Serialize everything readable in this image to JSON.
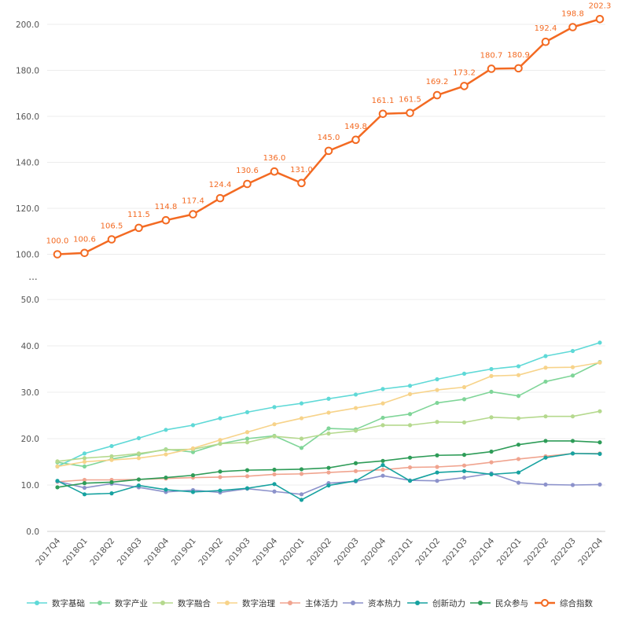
{
  "chart_data": {
    "type": "line",
    "title": "",
    "xlabel": "",
    "ylabel": "",
    "categories": [
      "2017Q4",
      "2018Q1",
      "2018Q2",
      "2018Q3",
      "2018Q4",
      "2019Q1",
      "2019Q2",
      "2019Q3",
      "2019Q4",
      "2020Q1",
      "2020Q2",
      "2020Q3",
      "2020Q4",
      "2021Q1",
      "2021Q2",
      "2021Q3",
      "2021Q4",
      "2022Q1",
      "2022Q2",
      "2022Q3",
      "2022Q4"
    ],
    "axis": {
      "upper_ticks": [
        "200.0",
        "180.0",
        "160.0",
        "140.0",
        "120.0",
        "100.0"
      ],
      "lower_ticks": [
        "50.0",
        "40.0",
        "30.0",
        "20.0",
        "10.0",
        "0.0"
      ],
      "break_symbol": "...",
      "ylim_upper": [
        100,
        202.3
      ],
      "ylim_lower": [
        0,
        50
      ],
      "grid": true,
      "legend_position": "bottom"
    },
    "series": [
      {
        "name": "数字基础",
        "color": "#5fd9d7",
        "values": [
          14.0,
          16.8,
          18.4,
          20.1,
          21.9,
          22.9,
          24.4,
          25.7,
          26.8,
          27.6,
          28.6,
          29.5,
          30.7,
          31.4,
          32.8,
          34.0,
          35.0,
          35.6,
          37.8,
          38.9,
          40.7
        ]
      },
      {
        "name": "数字产业",
        "color": "#7fd598",
        "values": [
          14.9,
          14.0,
          15.6,
          16.6,
          17.7,
          17.1,
          18.9,
          20.0,
          20.6,
          18.0,
          22.2,
          22.0,
          24.5,
          25.3,
          27.7,
          28.5,
          30.1,
          29.2,
          32.3,
          33.6,
          36.5
        ]
      },
      {
        "name": "数字融合",
        "color": "#b5d98e",
        "values": [
          15.1,
          15.8,
          16.2,
          16.8,
          17.6,
          17.7,
          18.9,
          19.2,
          20.5,
          20.0,
          21.1,
          21.7,
          22.9,
          22.9,
          23.6,
          23.5,
          24.6,
          24.4,
          24.8,
          24.8,
          25.9
        ]
      },
      {
        "name": "数字治理",
        "color": "#f7d38a",
        "values": [
          14.0,
          15.0,
          15.4,
          15.8,
          16.6,
          17.9,
          19.7,
          21.4,
          23.1,
          24.4,
          25.6,
          26.6,
          27.6,
          29.6,
          30.5,
          31.1,
          33.5,
          33.7,
          35.3,
          35.4,
          36.4
        ]
      },
      {
        "name": "主体活力",
        "color": "#f0a48f",
        "values": [
          10.7,
          11.1,
          11.1,
          11.2,
          11.4,
          11.6,
          11.7,
          11.9,
          12.3,
          12.4,
          12.7,
          13.0,
          13.3,
          13.8,
          13.9,
          14.2,
          14.9,
          15.6,
          16.2,
          16.8,
          16.8
        ]
      },
      {
        "name": "资本热力",
        "color": "#8c92cb",
        "values": [
          10.8,
          9.4,
          10.3,
          9.5,
          8.5,
          8.9,
          8.4,
          9.2,
          8.6,
          8.0,
          10.4,
          10.8,
          12.0,
          11.0,
          10.9,
          11.6,
          12.5,
          10.5,
          10.1,
          10.0,
          10.1
        ]
      },
      {
        "name": "创新动力",
        "color": "#17a2a0",
        "values": [
          10.9,
          8.0,
          8.2,
          9.9,
          9.0,
          8.5,
          8.8,
          9.3,
          10.2,
          6.8,
          9.9,
          10.9,
          14.3,
          10.9,
          12.7,
          13.0,
          12.3,
          12.7,
          15.9,
          16.8,
          16.7
        ]
      },
      {
        "name": "民众参与",
        "color": "#2e9c58",
        "values": [
          9.5,
          10.4,
          10.6,
          11.2,
          11.6,
          12.1,
          12.9,
          13.2,
          13.3,
          13.4,
          13.7,
          14.7,
          15.2,
          15.9,
          16.4,
          16.5,
          17.2,
          18.7,
          19.5,
          19.5,
          19.2
        ]
      },
      {
        "name": "综合指数",
        "color": "#f36a22",
        "values": [
          100.0,
          100.6,
          106.5,
          111.5,
          114.8,
          117.4,
          124.4,
          130.6,
          136.0,
          131.0,
          145.0,
          149.8,
          161.1,
          161.5,
          169.2,
          173.2,
          180.7,
          180.9,
          192.4,
          198.8,
          202.3
        ],
        "labels": [
          "100.0",
          "100.6",
          "106.5",
          "111.5",
          "114.8",
          "117.4",
          "124.4",
          "130.6",
          "136.0",
          "131.0",
          "145.0",
          "149.8",
          "161.1",
          "161.5",
          "169.2",
          "173.2",
          "180.7",
          "180.9",
          "192.4",
          "198.8",
          "202.3"
        ]
      }
    ]
  }
}
